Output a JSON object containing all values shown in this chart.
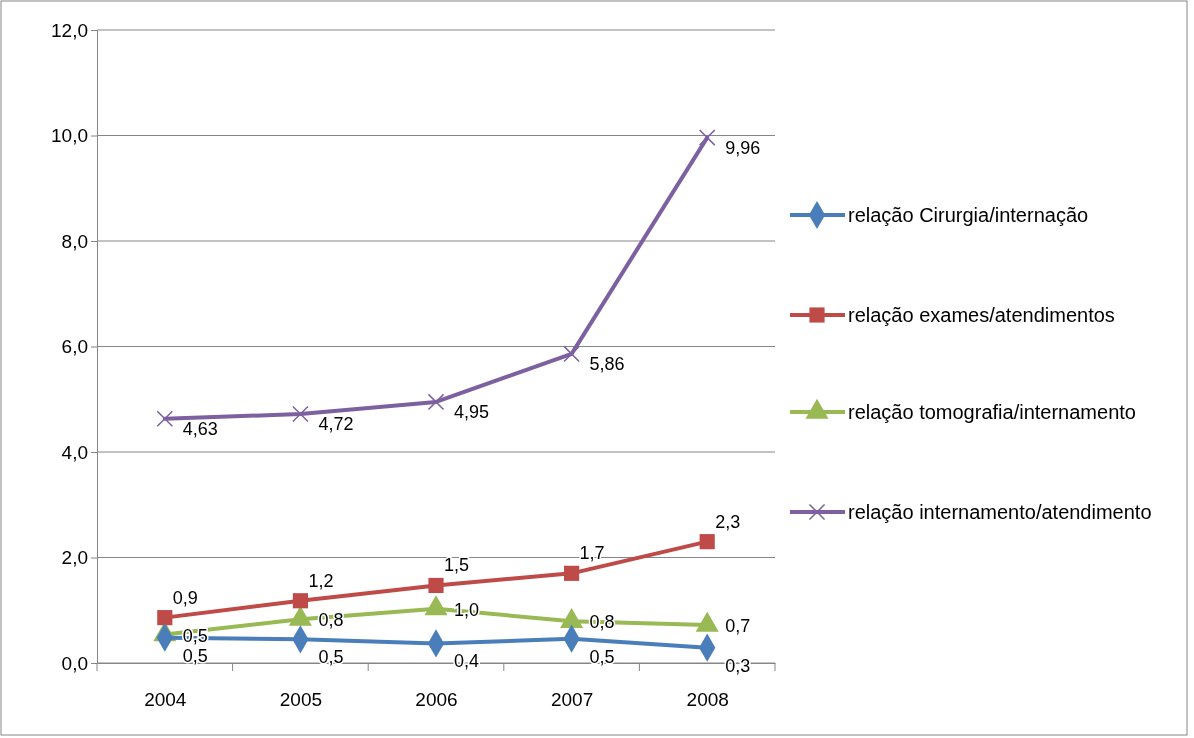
{
  "chart_data": {
    "type": "line",
    "categories": [
      "2004",
      "2005",
      "2006",
      "2007",
      "2008"
    ],
    "ylim": [
      0,
      12
    ],
    "yticks": [
      {
        "value": 0,
        "label": "0,0"
      },
      {
        "value": 2,
        "label": "2,0"
      },
      {
        "value": 4,
        "label": "4,0"
      },
      {
        "value": 6,
        "label": "6,0"
      },
      {
        "value": 8,
        "label": "8,0"
      },
      {
        "value": 10,
        "label": "10,0"
      },
      {
        "value": 12,
        "label": "12,0"
      }
    ],
    "grid": "y",
    "legend": "right",
    "series": [
      {
        "name": "relação Cirurgia/internação",
        "color": "#4a7ebb",
        "marker": "diamond",
        "values": [
          0.48,
          0.45,
          0.37,
          0.46,
          0.29
        ],
        "value_labels": [
          "0,5",
          "0,5",
          "0,4",
          "0,5",
          "0,3"
        ]
      },
      {
        "name": "relação exames/atendimentos",
        "color": "#be4b48",
        "marker": "square",
        "values": [
          0.86,
          1.18,
          1.47,
          1.7,
          2.3
        ],
        "value_labels": [
          "0,9",
          "1,2",
          "1,5",
          "1,7",
          "2,3"
        ]
      },
      {
        "name": "relação tomografia/internamento",
        "color": "#98b954",
        "marker": "triangle",
        "values": [
          0.54,
          0.83,
          1.03,
          0.79,
          0.72
        ],
        "value_labels": [
          "0,5",
          "0,8",
          "1,0",
          "0,8",
          "0,7"
        ]
      },
      {
        "name": "relação internamento/atendimento",
        "color": "#7d60a0",
        "marker": "cross",
        "values": [
          4.63,
          4.72,
          4.95,
          5.86,
          9.96
        ],
        "value_labels": [
          "4,63",
          "4,72",
          "4,95",
          "5,86",
          "9,96"
        ]
      }
    ]
  }
}
